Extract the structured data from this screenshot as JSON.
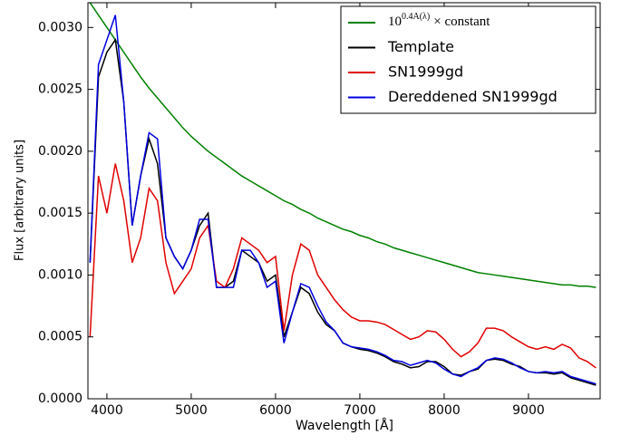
{
  "chart_data": {
    "type": "line",
    "xlabel": "Wavelength [Å]",
    "ylabel": "Flux [arbitrary units]",
    "xlim": [
      3775,
      9850
    ],
    "ylim": [
      0,
      0.0032
    ],
    "xticks": [
      4000,
      5000,
      6000,
      7000,
      8000,
      9000
    ],
    "yticks": [
      {
        "value": 0,
        "label": "0.0000"
      },
      {
        "value": 0.0005,
        "label": "0.0005"
      },
      {
        "value": 0.001,
        "label": "0.0010"
      },
      {
        "value": 0.0015,
        "label": "0.0015"
      },
      {
        "value": 0.002,
        "label": "0.0020"
      },
      {
        "value": 0.0025,
        "label": "0.0025"
      },
      {
        "value": 0.003,
        "label": "0.0030"
      }
    ],
    "grid": false,
    "legend": "upper right",
    "x": [
      3800,
      3900,
      4000,
      4100,
      4200,
      4300,
      4400,
      4500,
      4600,
      4700,
      4800,
      4900,
      5000,
      5100,
      5200,
      5300,
      5400,
      5500,
      5600,
      5700,
      5800,
      5900,
      6000,
      6100,
      6200,
      6300,
      6400,
      6500,
      6600,
      6700,
      6800,
      6900,
      7000,
      7100,
      7200,
      7300,
      7400,
      7500,
      7600,
      7700,
      7800,
      7900,
      8000,
      8100,
      8200,
      8300,
      8400,
      8500,
      8600,
      8700,
      8800,
      8900,
      9000,
      9100,
      9200,
      9300,
      9400,
      9500,
      9600,
      9700,
      9800
    ],
    "series": [
      {
        "name": "10",
        "name_superscript": "0.4A(λ)",
        "name_suffix": "× constant",
        "color": "#008000",
        "values": [
          0.0032,
          0.0031,
          0.003,
          0.0029,
          0.0028,
          0.0027,
          0.0026,
          0.00251,
          0.00243,
          0.00235,
          0.00227,
          0.00219,
          0.00212,
          0.00206,
          0.002,
          0.00195,
          0.0019,
          0.00185,
          0.0018,
          0.00176,
          0.00172,
          0.00168,
          0.00164,
          0.0016,
          0.00157,
          0.00153,
          0.0015,
          0.00146,
          0.00143,
          0.0014,
          0.00137,
          0.00135,
          0.00132,
          0.0013,
          0.00127,
          0.00125,
          0.00122,
          0.0012,
          0.00118,
          0.00116,
          0.00114,
          0.00112,
          0.0011,
          0.00108,
          0.00106,
          0.00104,
          0.00102,
          0.00101,
          0.001,
          0.00099,
          0.00098,
          0.00097,
          0.00096,
          0.00095,
          0.00094,
          0.00093,
          0.00092,
          0.00092,
          0.00091,
          0.00091,
          0.0009
        ]
      },
      {
        "name": "Template",
        "color": "#000000",
        "values": [
          0.0011,
          0.0026,
          0.0028,
          0.0029,
          0.0024,
          0.0014,
          0.0018,
          0.0021,
          0.0019,
          0.0013,
          0.00115,
          0.00105,
          0.0012,
          0.0014,
          0.0015,
          0.0009,
          0.0009,
          0.00095,
          0.0012,
          0.00115,
          0.0011,
          0.00095,
          0.001,
          0.0005,
          0.0007,
          0.0009,
          0.00085,
          0.0007,
          0.0006,
          0.00055,
          0.00045,
          0.00042,
          0.0004,
          0.00039,
          0.00037,
          0.00034,
          0.0003,
          0.00028,
          0.00025,
          0.00026,
          0.0003,
          0.0003,
          0.00026,
          0.0002,
          0.00019,
          0.00022,
          0.00024,
          0.00031,
          0.00032,
          0.00031,
          0.00028,
          0.00026,
          0.00022,
          0.00021,
          0.00021,
          0.0002,
          0.00021,
          0.00017,
          0.00015,
          0.00013,
          0.00011
        ]
      },
      {
        "name": "SN1999gd",
        "color": "#e00000",
        "values": [
          0.0005,
          0.0018,
          0.0015,
          0.0019,
          0.0016,
          0.0011,
          0.0013,
          0.0017,
          0.0016,
          0.0011,
          0.00085,
          0.00095,
          0.00105,
          0.0013,
          0.0014,
          0.00095,
          0.0009,
          0.00105,
          0.0013,
          0.00125,
          0.0012,
          0.0011,
          0.00115,
          0.00055,
          0.001,
          0.00125,
          0.0012,
          0.001,
          0.0009,
          0.0008,
          0.00072,
          0.00066,
          0.00063,
          0.00063,
          0.00062,
          0.0006,
          0.00056,
          0.00052,
          0.00048,
          0.0005,
          0.00055,
          0.00054,
          0.00048,
          0.0004,
          0.00034,
          0.00038,
          0.00045,
          0.00057,
          0.00057,
          0.00055,
          0.0005,
          0.00046,
          0.00042,
          0.0004,
          0.00042,
          0.0004,
          0.00044,
          0.00041,
          0.00033,
          0.0003,
          0.00025
        ]
      },
      {
        "name": "Dereddened SN1999gd",
        "color": "#0000e0",
        "values": [
          0.0011,
          0.0027,
          0.0029,
          0.0031,
          0.0024,
          0.0014,
          0.0018,
          0.00215,
          0.0021,
          0.0013,
          0.00115,
          0.00105,
          0.0012,
          0.00145,
          0.00145,
          0.0009,
          0.0009,
          0.0009,
          0.0012,
          0.0012,
          0.0011,
          0.0009,
          0.00095,
          0.00045,
          0.0007,
          0.00093,
          0.0009,
          0.00075,
          0.00062,
          0.00055,
          0.00045,
          0.00042,
          0.00041,
          0.0004,
          0.00038,
          0.00035,
          0.00031,
          0.0003,
          0.00027,
          0.00029,
          0.00031,
          0.00029,
          0.00024,
          0.0002,
          0.00018,
          0.00022,
          0.00025,
          0.00031,
          0.00033,
          0.00032,
          0.00029,
          0.00025,
          0.00022,
          0.00021,
          0.00022,
          0.00021,
          0.00022,
          0.00018,
          0.00016,
          0.00014,
          0.00012
        ]
      }
    ]
  }
}
